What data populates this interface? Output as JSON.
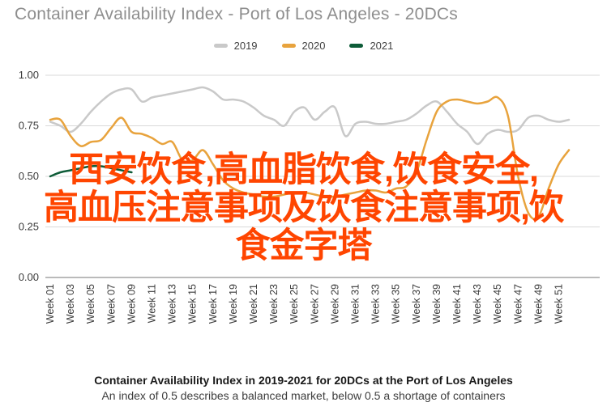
{
  "header": {
    "title": "Container Availability Index - Port of Los Angeles - 20DCs"
  },
  "legend": {
    "items": [
      {
        "label": "2019",
        "color": "#c9c9c9"
      },
      {
        "label": "2020",
        "color": "#e8a33d"
      },
      {
        "label": "2021",
        "color": "#0e5c38"
      }
    ]
  },
  "overlay": {
    "color": "#ff4500",
    "line1": "西安饮食,高血脂饮食,饮食安全,",
    "line2": "高血压注意事项及饮食注意事项,饮",
    "line3": "食金字塔"
  },
  "footer": {
    "title": "Container Availability Index in 2019-2021 for 20DCs at the Port of Los Angeles",
    "subtitle": "An index of 0.5 describes a balanced market, below 0.5 a shortage of containers"
  },
  "chart_data": {
    "type": "line",
    "title": "Container Availability Index - Port of Los Angeles - 20DCs",
    "ylim": [
      0,
      1
    ],
    "grid": "horizontal",
    "legend_position": "top",
    "y_tick_labels": [
      "1.00",
      "0.75",
      "0.50",
      "0.25",
      "0.00"
    ],
    "y_tick_values": [
      1.0,
      0.75,
      0.5,
      0.25,
      0.0
    ],
    "x_tick_weeks": [
      1,
      3,
      5,
      7,
      9,
      11,
      13,
      15,
      17,
      19,
      21,
      23,
      25,
      27,
      29,
      31,
      33,
      35,
      37,
      39,
      41,
      43,
      45,
      47,
      49,
      51
    ],
    "x_tick_labels": [
      "Week 01",
      "Week 03",
      "Week 05",
      "Week 07",
      "Week 09",
      "Week 11",
      "Week 13",
      "Week 15",
      "Week 17",
      "Week 19",
      "Week 21",
      "Week 23",
      "Week 25",
      "Week 27",
      "Week 29",
      "Week 31",
      "Week 33",
      "Week 35",
      "Week 37",
      "Week 39",
      "Week 41",
      "Week 43",
      "Week 45",
      "Week 47",
      "Week 49",
      "Week 51"
    ],
    "series": [
      {
        "name": "2019",
        "color": "#c9c9c9",
        "week_start": 1,
        "values": [
          0.77,
          0.75,
          0.72,
          0.76,
          0.82,
          0.87,
          0.91,
          0.93,
          0.93,
          0.87,
          0.89,
          0.9,
          0.91,
          0.92,
          0.93,
          0.94,
          0.92,
          0.88,
          0.88,
          0.87,
          0.84,
          0.8,
          0.78,
          0.75,
          0.82,
          0.84,
          0.78,
          0.82,
          0.84,
          0.7,
          0.76,
          0.77,
          0.76,
          0.76,
          0.77,
          0.78,
          0.81,
          0.85,
          0.87,
          0.82,
          0.76,
          0.72,
          0.66,
          0.71,
          0.73,
          0.72,
          0.73,
          0.79,
          0.8,
          0.78,
          0.77,
          0.78
        ]
      },
      {
        "name": "2020",
        "color": "#e8a33d",
        "week_start": 1,
        "values": [
          0.78,
          0.78,
          0.7,
          0.65,
          0.67,
          0.68,
          0.74,
          0.79,
          0.72,
          0.71,
          0.69,
          0.66,
          0.67,
          0.58,
          0.58,
          0.63,
          0.56,
          0.48,
          0.44,
          0.42,
          0.41,
          0.4,
          0.4,
          0.41,
          0.42,
          0.42,
          0.41,
          0.4,
          0.4,
          0.41,
          0.42,
          0.43,
          0.43,
          0.42,
          0.44,
          0.45,
          0.52,
          0.68,
          0.82,
          0.87,
          0.88,
          0.87,
          0.86,
          0.87,
          0.89,
          0.8,
          0.5,
          0.32,
          0.3,
          0.44,
          0.56,
          0.63
        ]
      },
      {
        "name": "2021",
        "color": "#0e5c38",
        "week_start": 1,
        "values": [
          0.5,
          0.52,
          0.53,
          0.54,
          0.55,
          0.55,
          0.54,
          0.53,
          0.52
        ]
      }
    ]
  }
}
